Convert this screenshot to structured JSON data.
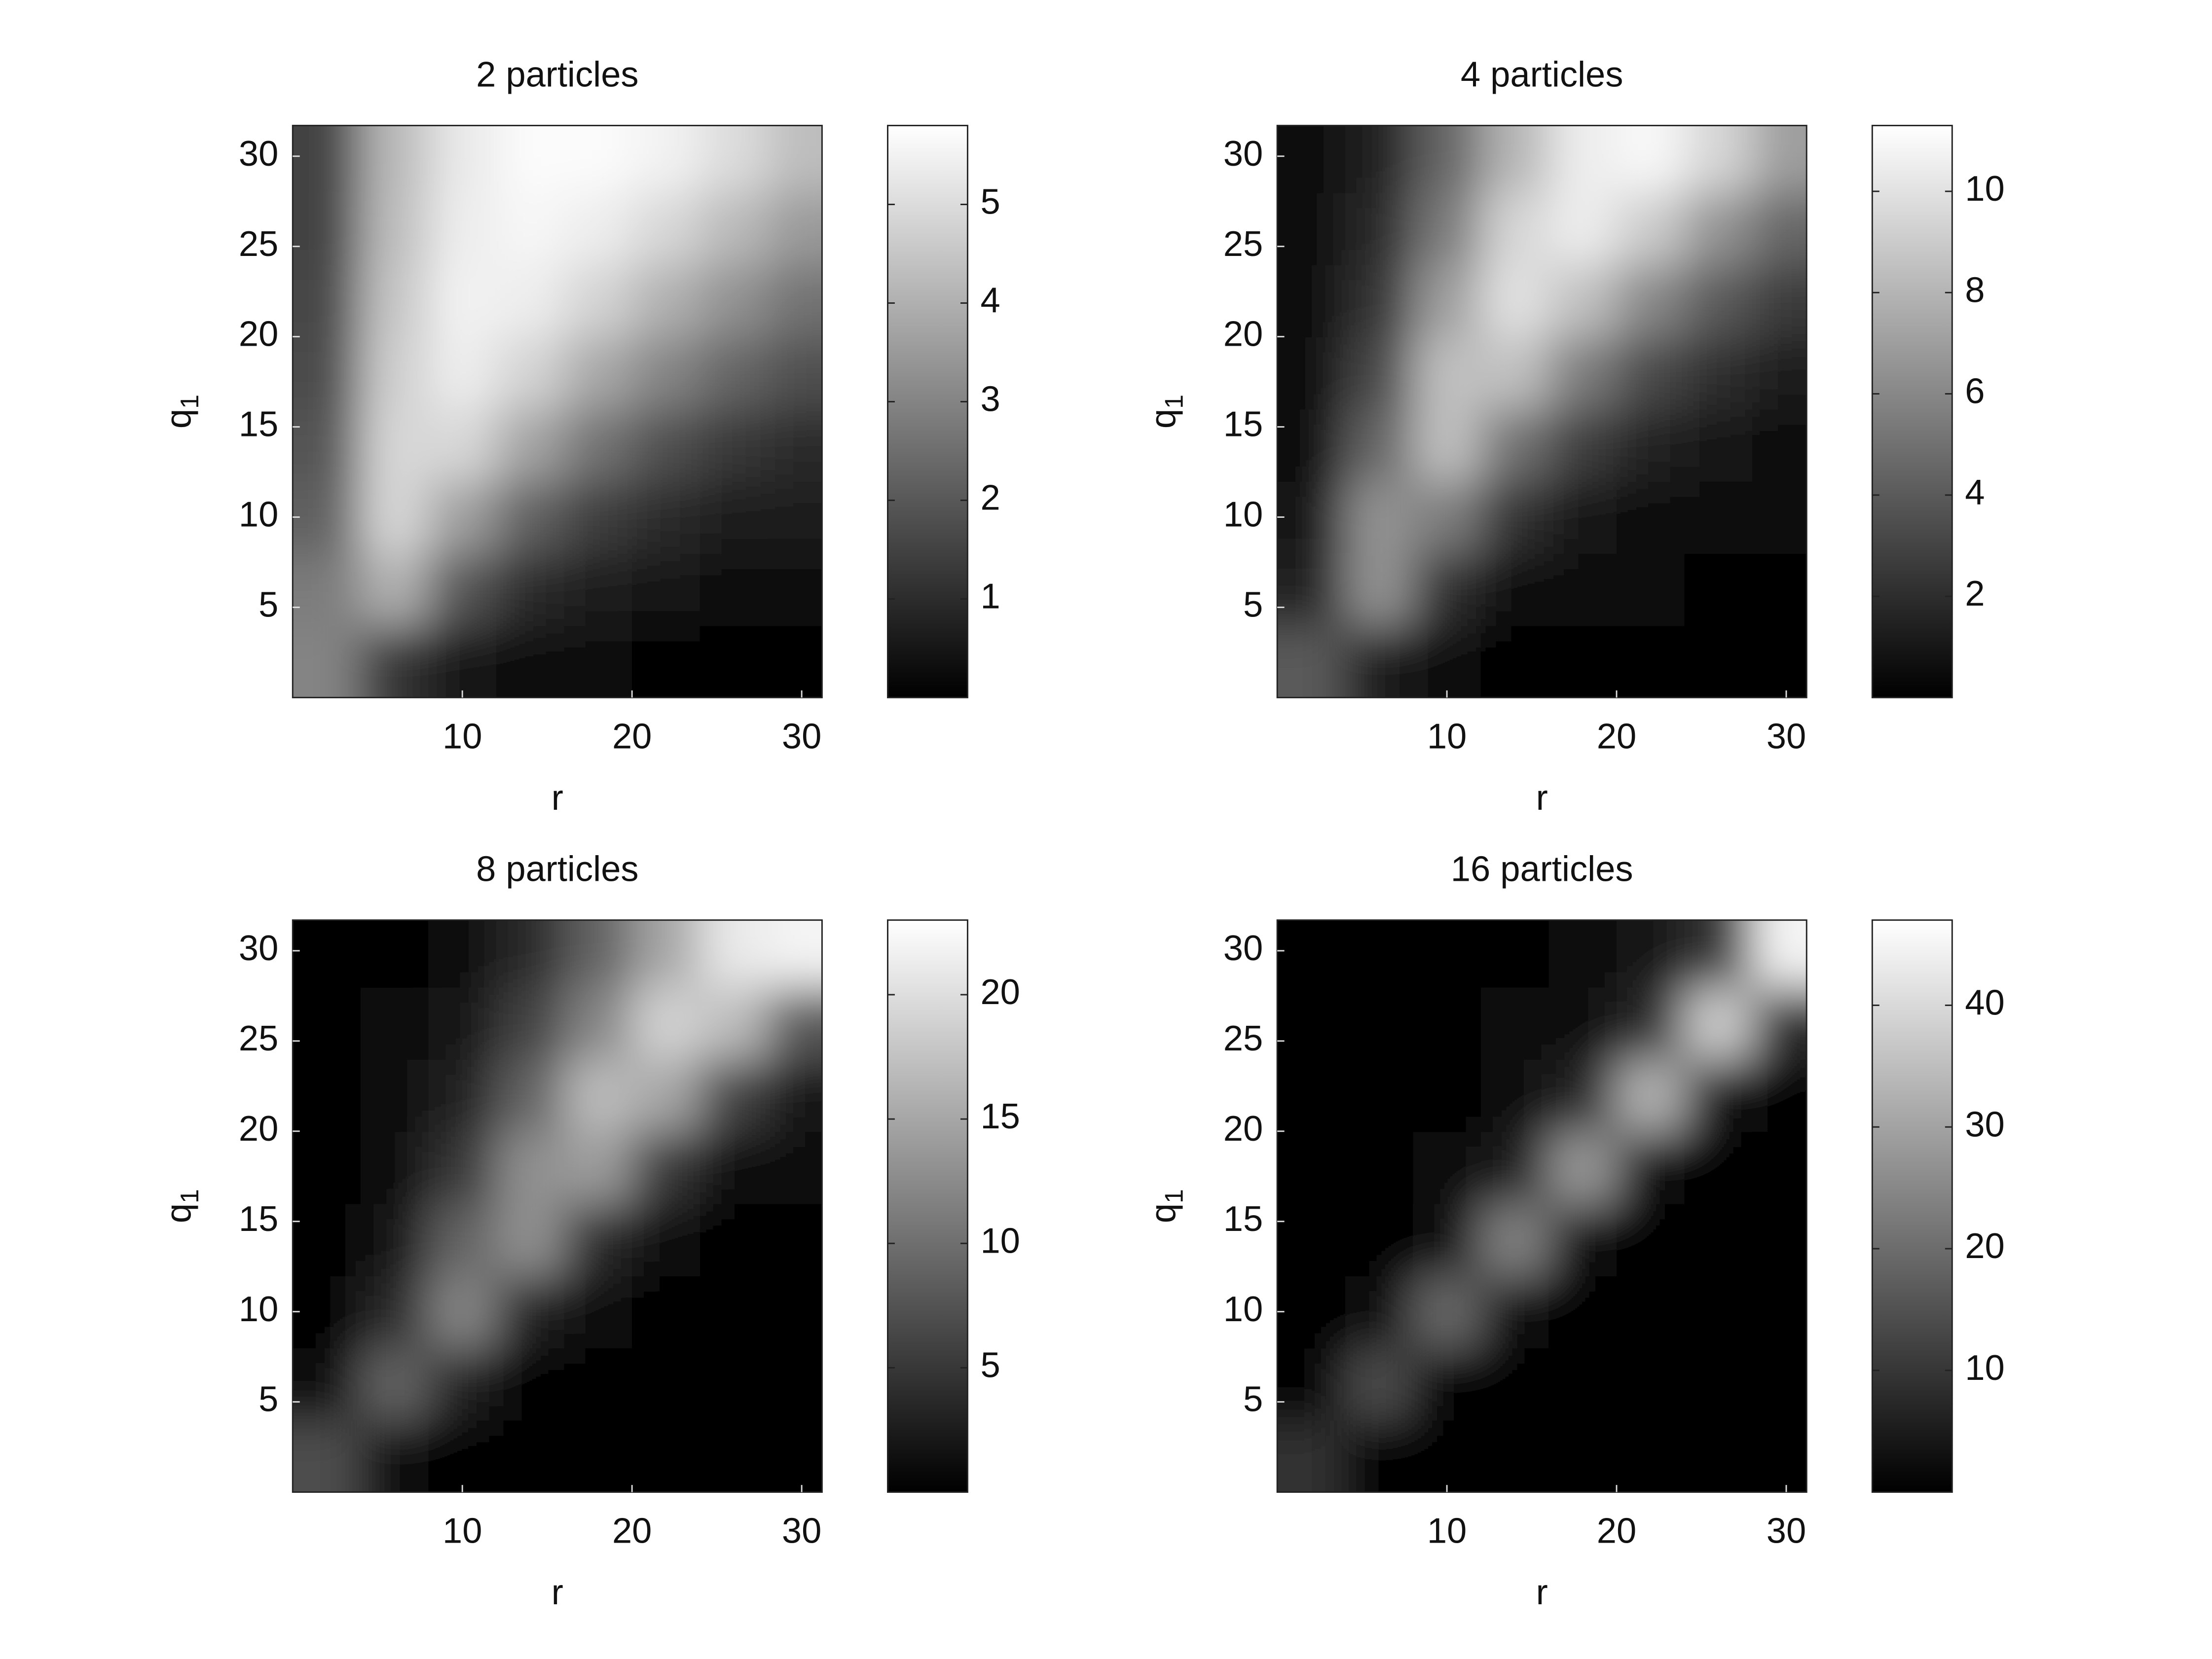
{
  "chart_data": [
    {
      "type": "heatmap",
      "title": "2 particles",
      "x_label": "r",
      "y_label": "q",
      "y_label_subscript": "1",
      "colormap": "gray",
      "xlim": [
        0,
        31.2
      ],
      "ylim": [
        0,
        31.7
      ],
      "xticks": [
        10,
        20,
        30
      ],
      "yticks": [
        5,
        10,
        15,
        20,
        25,
        30
      ],
      "clim": [
        0,
        5.8
      ],
      "cticks": [
        1,
        2,
        3,
        4,
        5
      ],
      "x": [
        2,
        6,
        10,
        14,
        18,
        22,
        26,
        30
      ],
      "y": [
        2,
        6,
        10,
        14,
        18,
        22,
        26,
        30
      ],
      "z": [
        [
          3.0,
          1.2,
          0.4,
          0.2,
          0.2,
          0.1,
          0.1,
          0.1
        ],
        [
          2.8,
          4.0,
          1.9,
          1.0,
          0.6,
          0.4,
          0.3,
          0.3
        ],
        [
          2.2,
          4.9,
          3.6,
          2.2,
          1.4,
          1.0,
          0.7,
          0.6
        ],
        [
          1.9,
          4.9,
          4.9,
          3.7,
          2.6,
          1.8,
          1.3,
          1.0
        ],
        [
          1.7,
          4.7,
          5.4,
          4.8,
          3.8,
          3.0,
          2.3,
          1.8
        ],
        [
          1.6,
          4.5,
          5.5,
          5.4,
          4.8,
          4.0,
          3.3,
          2.6
        ],
        [
          1.5,
          4.3,
          5.4,
          5.6,
          5.4,
          4.9,
          4.2,
          3.5
        ],
        [
          1.5,
          4.2,
          5.3,
          5.7,
          5.7,
          5.5,
          5.0,
          4.3
        ]
      ]
    },
    {
      "type": "heatmap",
      "title": "4 particles",
      "x_label": "r",
      "y_label": "q",
      "y_label_subscript": "1",
      "colormap": "gray",
      "xlim": [
        0,
        31.2
      ],
      "ylim": [
        0,
        31.7
      ],
      "xticks": [
        10,
        20,
        30
      ],
      "yticks": [
        5,
        10,
        15,
        20,
        25,
        30
      ],
      "clim": [
        0,
        11.3
      ],
      "cticks": [
        2,
        4,
        6,
        8,
        10
      ],
      "x": [
        2,
        6,
        10,
        14,
        18,
        22,
        26,
        30
      ],
      "y": [
        2,
        6,
        10,
        14,
        18,
        22,
        26,
        30
      ],
      "z": [
        [
          4,
          1.2,
          0.3,
          0.2,
          0.1,
          0.1,
          0.1,
          0.1
        ],
        [
          1.5,
          6.5,
          2,
          0.7,
          0.4,
          0.3,
          0.2,
          0.2
        ],
        [
          0.9,
          6.5,
          5.5,
          2.2,
          1,
          0.6,
          0.4,
          0.3
        ],
        [
          0.6,
          4.5,
          8.5,
          5,
          2.7,
          1.5,
          0.9,
          0.6
        ],
        [
          0.5,
          3.2,
          8.5,
          8.5,
          5.5,
          3.3,
          2,
          1.3
        ],
        [
          0.4,
          2.3,
          7,
          10,
          8.5,
          6,
          4,
          2.6
        ],
        [
          0.3,
          1.8,
          5.5,
          9.5,
          10.5,
          9,
          6.5,
          4.5
        ],
        [
          0.3,
          1.5,
          4.5,
          8,
          10.5,
          11,
          9.5,
          7
        ]
      ]
    },
    {
      "type": "heatmap",
      "title": "8 particles",
      "x_label": "r",
      "y_label": "q",
      "y_label_subscript": "1",
      "colormap": "gray",
      "xlim": [
        0,
        31.2
      ],
      "ylim": [
        0,
        31.7
      ],
      "xticks": [
        10,
        20,
        30
      ],
      "yticks": [
        5,
        10,
        15,
        20,
        25,
        30
      ],
      "clim": [
        0,
        23
      ],
      "cticks": [
        5,
        10,
        15,
        20
      ],
      "x": [
        2,
        6,
        10,
        14,
        18,
        22,
        26,
        30
      ],
      "y": [
        2,
        6,
        10,
        14,
        18,
        22,
        26,
        30
      ],
      "z": [
        [
          7,
          1.5,
          0.3,
          0.1,
          0.1,
          0.1,
          0.1,
          0.1
        ],
        [
          1,
          9,
          3,
          0.5,
          0.2,
          0.1,
          0.1,
          0.1
        ],
        [
          0.5,
          4,
          12,
          3,
          0.8,
          0.3,
          0.2,
          0.1
        ],
        [
          0.4,
          2,
          9,
          13,
          4,
          1,
          0.4,
          0.2
        ],
        [
          0.3,
          1.2,
          5,
          13,
          14,
          5,
          1.5,
          0.6
        ],
        [
          0.2,
          0.8,
          3,
          9,
          17,
          15,
          6,
          2
        ],
        [
          0.2,
          0.6,
          2,
          6,
          12,
          19,
          17,
          8
        ],
        [
          0.2,
          0.5,
          1.5,
          4,
          9,
          15,
          21,
          22
        ]
      ]
    },
    {
      "type": "heatmap",
      "title": "16 particles",
      "x_label": "r",
      "y_label": "q",
      "y_label_subscript": "1",
      "colormap": "gray",
      "xlim": [
        0,
        31.2
      ],
      "ylim": [
        0,
        31.7
      ],
      "xticks": [
        10,
        20,
        30
      ],
      "yticks": [
        5,
        10,
        15,
        20,
        25,
        30
      ],
      "clim": [
        0,
        47
      ],
      "cticks": [
        10,
        20,
        30,
        40
      ],
      "x": [
        2,
        6,
        10,
        14,
        18,
        22,
        26,
        30
      ],
      "y": [
        2,
        6,
        10,
        14,
        18,
        22,
        26,
        30
      ],
      "z": [
        [
          9,
          0.5,
          0.1,
          0.1,
          0.1,
          0.1,
          0.1,
          0.1
        ],
        [
          0.5,
          14,
          1,
          0.2,
          0.1,
          0.1,
          0.1,
          0.1
        ],
        [
          0.2,
          1.5,
          19,
          1.5,
          0.2,
          0.1,
          0.1,
          0.1
        ],
        [
          0.2,
          0.6,
          3,
          24,
          2,
          0.2,
          0.1,
          0.1
        ],
        [
          0.1,
          0.4,
          1.2,
          5,
          28,
          3,
          0.3,
          0.1
        ],
        [
          0.1,
          0.3,
          0.8,
          2,
          7,
          33,
          4,
          0.5
        ],
        [
          0.1,
          0.2,
          0.5,
          1.5,
          3,
          8,
          38,
          8
        ],
        [
          0.1,
          0.2,
          0.4,
          1,
          2,
          4,
          10,
          45
        ]
      ]
    }
  ]
}
